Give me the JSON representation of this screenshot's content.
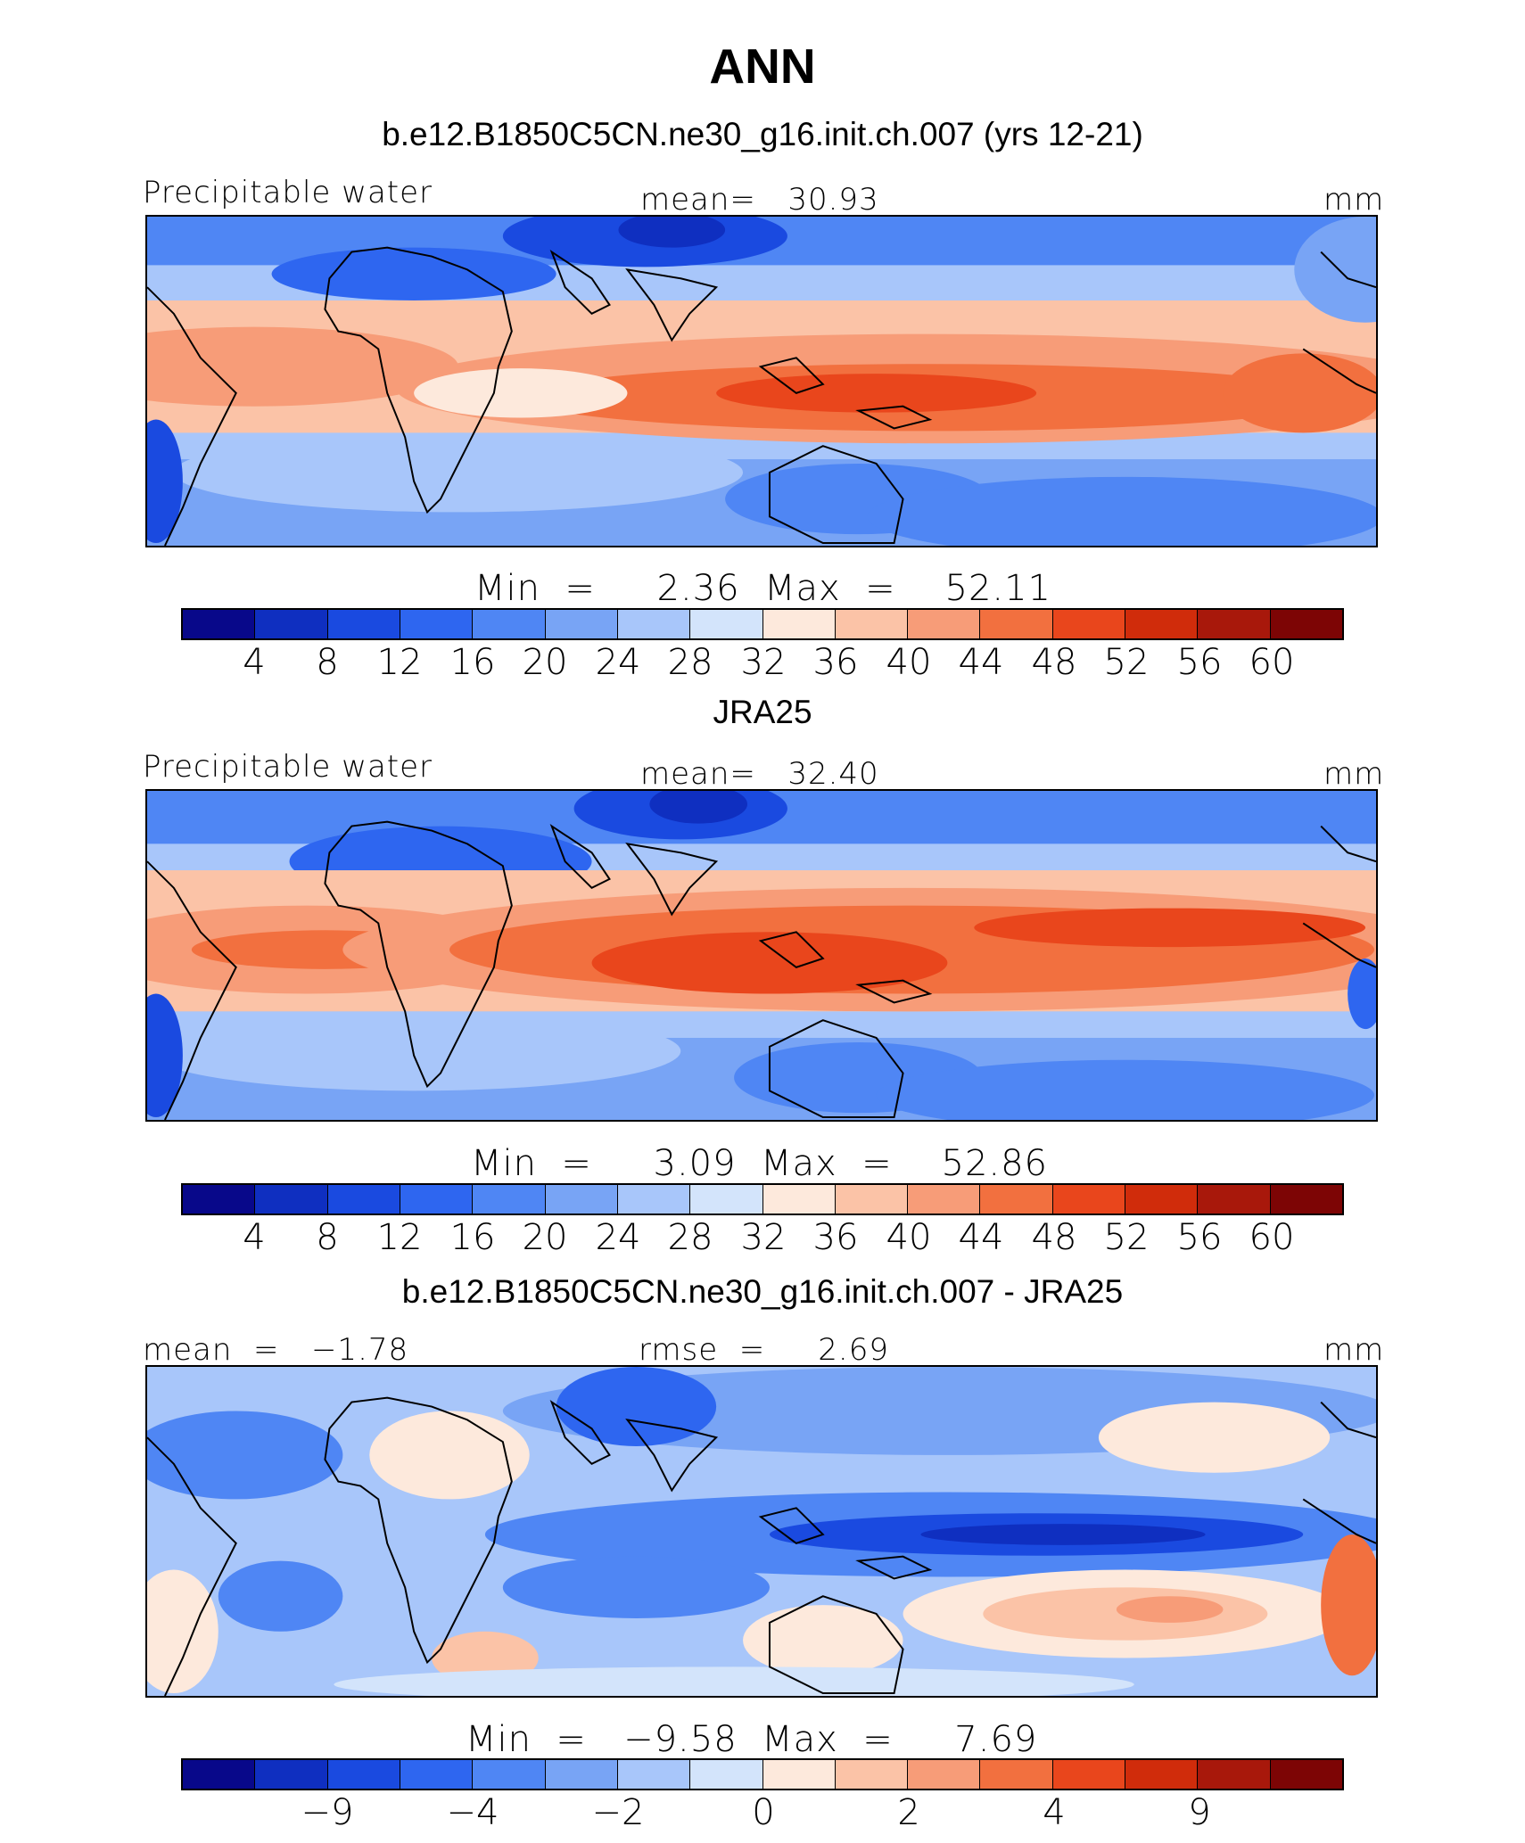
{
  "figure_title": "ANN",
  "colors": [
    "#08088a",
    "#0f2fc0",
    "#1a4ae0",
    "#2e66f0",
    "#4f86f4",
    "#78a4f5",
    "#a8c6fa",
    "#d3e4fb",
    "#fde9dc",
    "#fbc3a7",
    "#f79c78",
    "#f2703f",
    "#e9461c",
    "#d02c0b",
    "#a8180b",
    "#7d0505"
  ],
  "panels": [
    {
      "title": "b.e12.B1850C5CN.ne30_g16.init.ch.007 (yrs 12-21)",
      "left_label": "Precipitable water",
      "center_label": "mean=   30.93",
      "units": "mm",
      "minmax": "Min  =     2.36  Max  =    52.11",
      "ticks": [
        "4",
        "8",
        "12",
        "16",
        "20",
        "24",
        "28",
        "32",
        "36",
        "40",
        "44",
        "48",
        "52",
        "56",
        "60"
      ]
    },
    {
      "title": "JRA25",
      "left_label": "Precipitable water",
      "center_label": "mean=   32.40",
      "units": "mm",
      "minmax": "Min  =     3.09  Max  =    52.86",
      "ticks": [
        "4",
        "8",
        "12",
        "16",
        "20",
        "24",
        "28",
        "32",
        "36",
        "40",
        "44",
        "48",
        "52",
        "56",
        "60"
      ]
    },
    {
      "title": "b.e12.B1850C5CN.ne30_g16.init.ch.007 - JRA25",
      "left_label": "mean  =   −1.78",
      "center_label": "rmse  =     2.69",
      "units": "mm",
      "minmax": "Min  =   −9.58  Max  =     7.69",
      "ticks": [
        "−9",
        "−4",
        "−2",
        "0",
        "2",
        "4",
        "9"
      ]
    }
  ]
}
